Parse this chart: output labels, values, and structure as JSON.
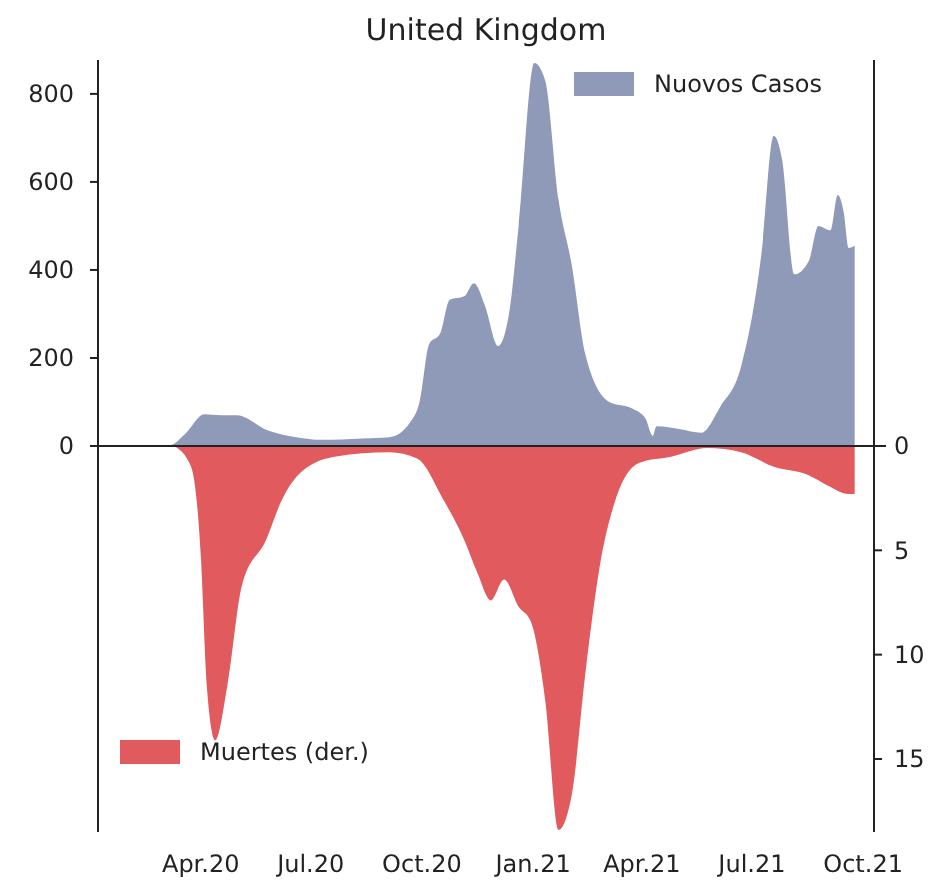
{
  "chart_data": {
    "type": "area",
    "title": "United Kingdom",
    "xlim": [
      "2020-01-07",
      "2021-10-10"
    ],
    "xticks": [
      {
        "value": "2020-04-01",
        "label": "Apr.20"
      },
      {
        "value": "2020-07-01",
        "label": "Jul.20"
      },
      {
        "value": "2020-10-01",
        "label": "Oct.20"
      },
      {
        "value": "2021-01-01",
        "label": "Jan.21"
      },
      {
        "value": "2021-04-01",
        "label": "Apr.21"
      },
      {
        "value": "2021-07-01",
        "label": "Jul.21"
      },
      {
        "value": "2021-10-01",
        "label": "Oct.21"
      }
    ],
    "ylim": [
      -877,
      877
    ],
    "yticks": [
      0,
      200,
      400,
      600,
      800
    ],
    "y2lim": [
      18.5,
      -18.5
    ],
    "y2ticks": [
      0,
      5,
      10,
      15
    ],
    "legend": "top right",
    "series": [
      {
        "name": "Nuovos Casos",
        "color": "#8e9ab8",
        "x": [
          "2020-02-04",
          "2020-03-07",
          "2020-03-19",
          "2020-04-04",
          "2020-04-18",
          "2020-05-01",
          "2020-05-26",
          "2020-06-19",
          "2020-07-10",
          "2020-08-13",
          "2020-09-04",
          "2020-09-21",
          "2020-09-29",
          "2020-10-07",
          "2020-10-16",
          "2020-10-24",
          "2020-11-05",
          "2020-11-13",
          "2020-11-22",
          "2020-12-03",
          "2020-12-12",
          "2020-12-20",
          "2021-01-02",
          "2021-01-11",
          "2021-01-22",
          "2021-02-02",
          "2021-02-13",
          "2021-03-05",
          "2021-03-24",
          "2021-04-04",
          "2021-04-10",
          "2021-04-13",
          "2021-05-03",
          "2021-05-20",
          "2021-06-05",
          "2021-06-22",
          "2021-07-09",
          "2021-07-19",
          "2021-07-26",
          "2021-08-05",
          "2021-08-17",
          "2021-08-25",
          "2021-09-04",
          "2021-09-10",
          "2021-09-15",
          "2021-09-19",
          "2021-09-24"
        ],
        "values": [
          1,
          2,
          27,
          72,
          70,
          70,
          36,
          20,
          14,
          17,
          20,
          53,
          100,
          232,
          255,
          332,
          340,
          370,
          320,
          227,
          300,
          500,
          870,
          830,
          560,
          410,
          210,
          100,
          85,
          62,
          23,
          45,
          38,
          30,
          90,
          180,
          440,
          705,
          650,
          390,
          420,
          500,
          490,
          570,
          530,
          450,
          455
        ]
      },
      {
        "name": "Muertes (der.)",
        "color": "#e05a5e",
        "axis": "y2",
        "x": [
          "2020-03-10",
          "2020-03-24",
          "2020-04-01",
          "2020-04-06",
          "2020-04-13",
          "2020-04-23",
          "2020-05-05",
          "2020-05-25",
          "2020-06-07",
          "2020-06-24",
          "2020-07-22",
          "2020-09-04",
          "2020-09-27",
          "2020-10-19",
          "2020-11-05",
          "2020-11-16",
          "2020-11-27",
          "2020-12-08",
          "2020-12-20",
          "2020-12-30",
          "2021-01-11",
          "2021-01-22",
          "2021-02-02",
          "2021-02-13",
          "2021-02-25",
          "2021-03-10",
          "2021-03-30",
          "2021-04-26",
          "2021-05-25",
          "2021-06-22",
          "2021-07-19",
          "2021-08-17",
          "2021-09-02",
          "2021-09-19",
          "2021-09-24"
        ],
        "values": [
          0,
          1,
          5.2,
          11.5,
          14.1,
          11.5,
          6.7,
          4.5,
          2.6,
          1.2,
          0.5,
          0.3,
          0.6,
          2.6,
          4.5,
          6.1,
          7.4,
          6.4,
          7.7,
          8.4,
          12.2,
          18.4,
          16.7,
          11,
          5.8,
          2.6,
          0.8,
          0.5,
          0.1,
          0.3,
          1,
          1.4,
          1.9,
          2.3,
          2.3
        ]
      }
    ]
  }
}
